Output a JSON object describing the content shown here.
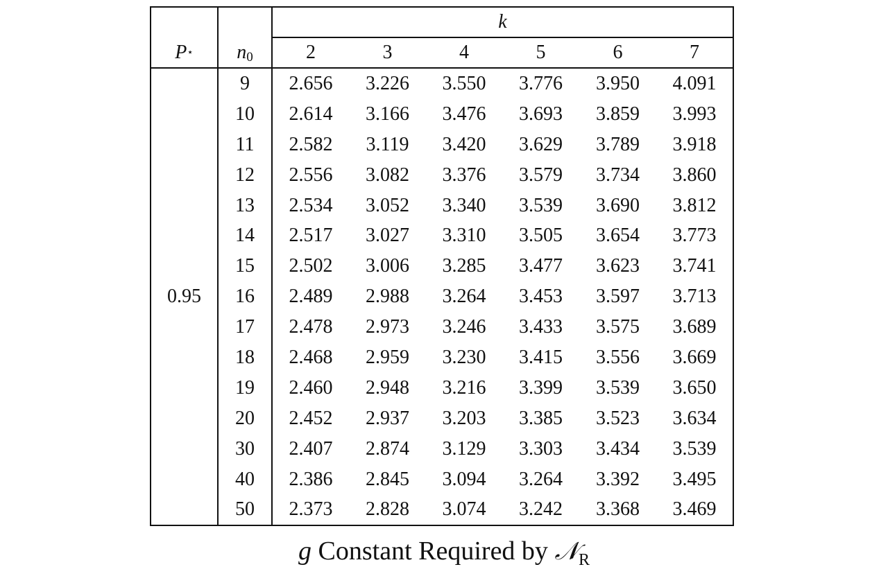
{
  "table": {
    "header_p": "P",
    "header_p_sup": "⋆",
    "header_n": "n",
    "header_n_sub": "0",
    "header_k": "k",
    "k_values": [
      "2",
      "3",
      "4",
      "5",
      "6",
      "7"
    ],
    "p_value": "0.95",
    "rows": [
      {
        "n0": "9",
        "vals": [
          "2.656",
          "3.226",
          "3.550",
          "3.776",
          "3.950",
          "4.091"
        ]
      },
      {
        "n0": "10",
        "vals": [
          "2.614",
          "3.166",
          "3.476",
          "3.693",
          "3.859",
          "3.993"
        ]
      },
      {
        "n0": "11",
        "vals": [
          "2.582",
          "3.119",
          "3.420",
          "3.629",
          "3.789",
          "3.918"
        ]
      },
      {
        "n0": "12",
        "vals": [
          "2.556",
          "3.082",
          "3.376",
          "3.579",
          "3.734",
          "3.860"
        ]
      },
      {
        "n0": "13",
        "vals": [
          "2.534",
          "3.052",
          "3.340",
          "3.539",
          "3.690",
          "3.812"
        ]
      },
      {
        "n0": "14",
        "vals": [
          "2.517",
          "3.027",
          "3.310",
          "3.505",
          "3.654",
          "3.773"
        ]
      },
      {
        "n0": "15",
        "vals": [
          "2.502",
          "3.006",
          "3.285",
          "3.477",
          "3.623",
          "3.741"
        ]
      },
      {
        "n0": "16",
        "vals": [
          "2.489",
          "2.988",
          "3.264",
          "3.453",
          "3.597",
          "3.713"
        ]
      },
      {
        "n0": "17",
        "vals": [
          "2.478",
          "2.973",
          "3.246",
          "3.433",
          "3.575",
          "3.689"
        ]
      },
      {
        "n0": "18",
        "vals": [
          "2.468",
          "2.959",
          "3.230",
          "3.415",
          "3.556",
          "3.669"
        ]
      },
      {
        "n0": "19",
        "vals": [
          "2.460",
          "2.948",
          "3.216",
          "3.399",
          "3.539",
          "3.650"
        ]
      },
      {
        "n0": "20",
        "vals": [
          "2.452",
          "2.937",
          "3.203",
          "3.385",
          "3.523",
          "3.634"
        ]
      },
      {
        "n0": "30",
        "vals": [
          "2.407",
          "2.874",
          "3.129",
          "3.303",
          "3.434",
          "3.539"
        ]
      },
      {
        "n0": "40",
        "vals": [
          "2.386",
          "2.845",
          "3.094",
          "3.264",
          "3.392",
          "3.495"
        ]
      },
      {
        "n0": "50",
        "vals": [
          "2.373",
          "2.828",
          "3.074",
          "3.242",
          "3.368",
          "3.469"
        ]
      }
    ]
  },
  "caption": {
    "g": "g",
    "text": " Constant Required by ",
    "n_symbol": "𝒩",
    "n_sub": "R"
  }
}
